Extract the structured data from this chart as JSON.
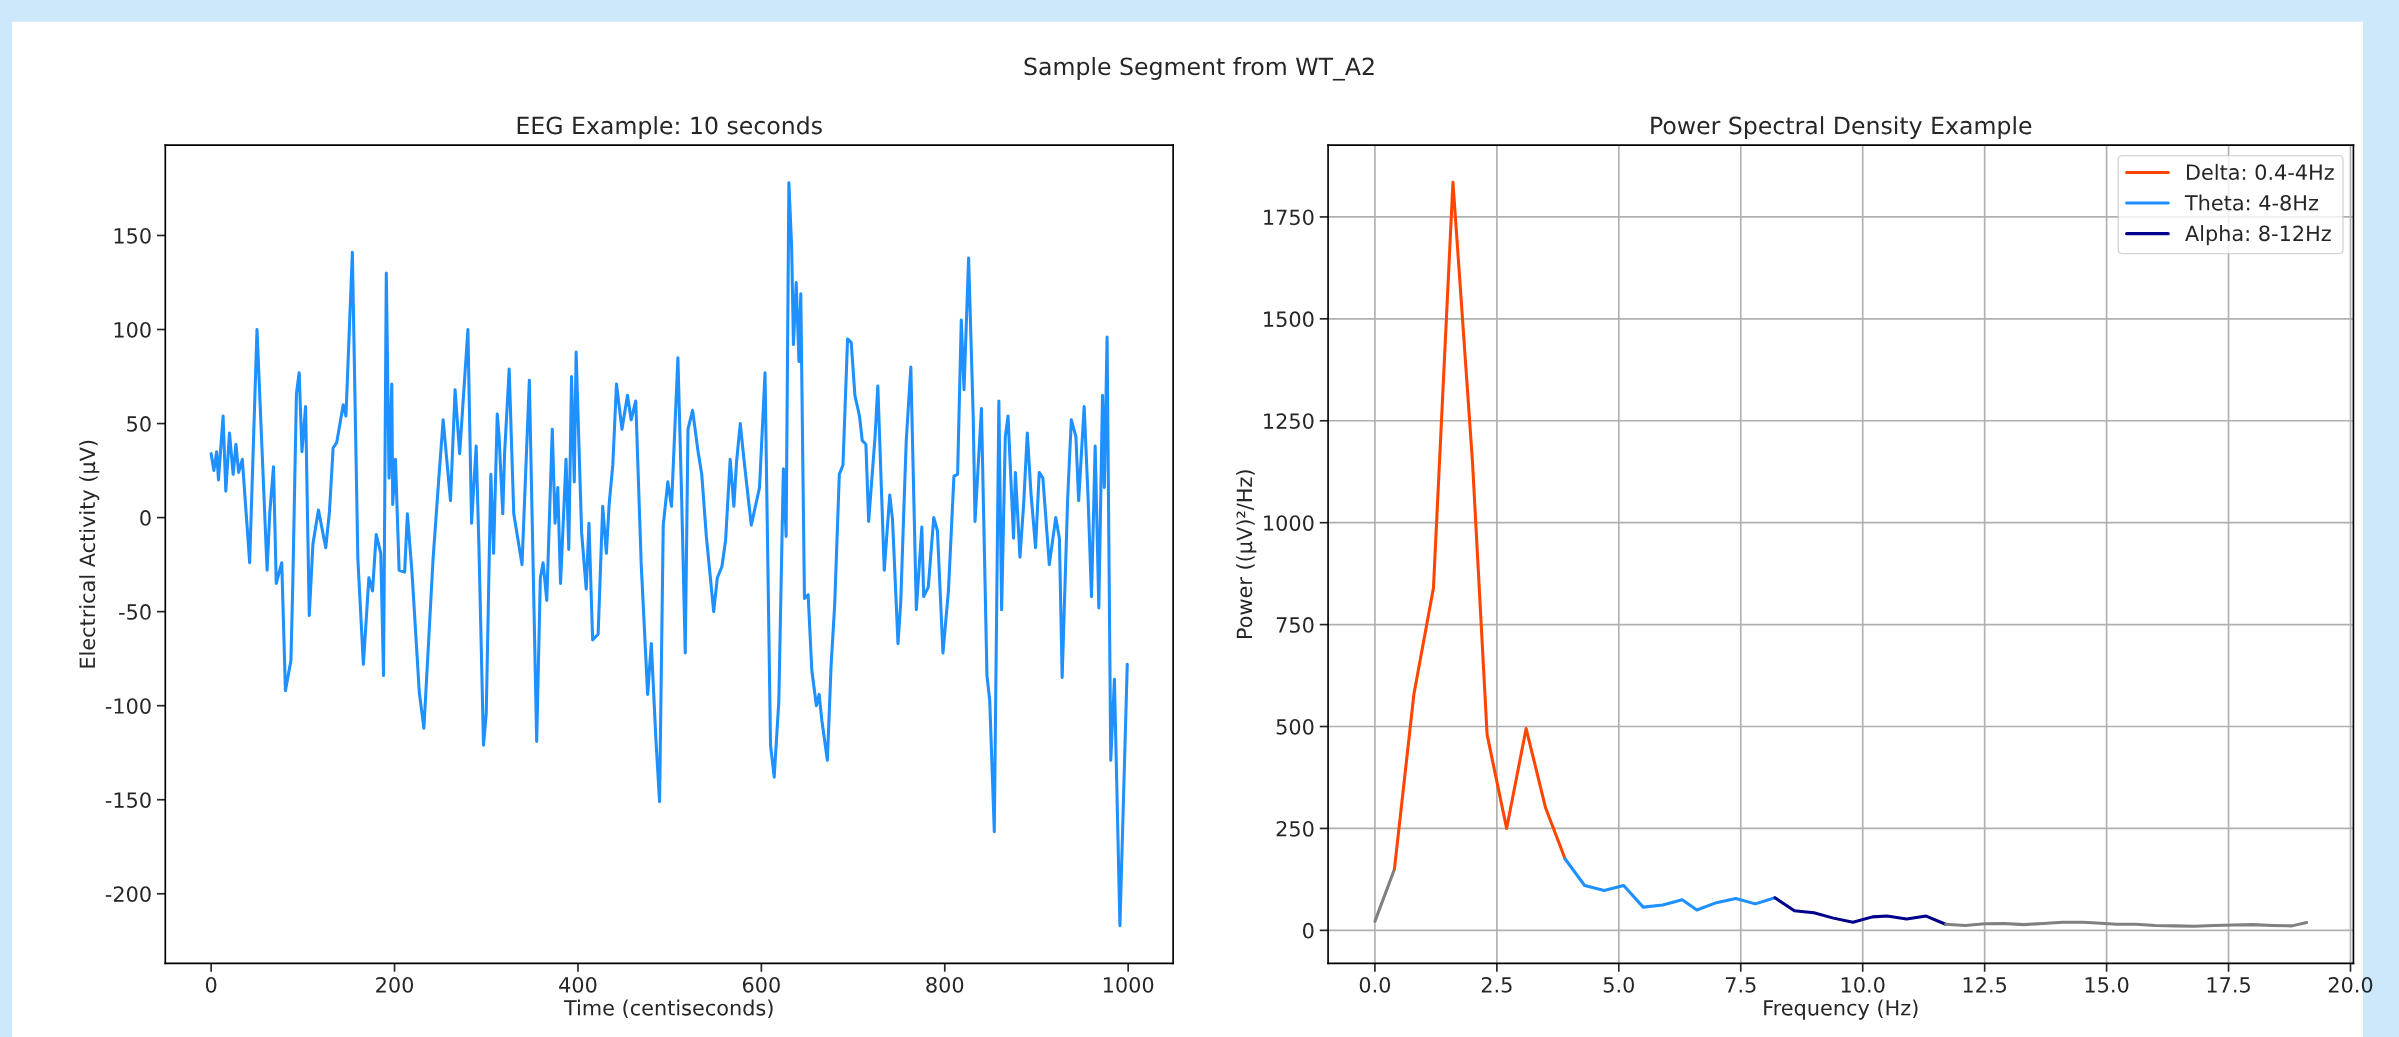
{
  "chart_data": [
    {
      "type": "line",
      "title": "EEG Example: 10 seconds",
      "xlabel": "Time (centiseconds)",
      "ylabel": "Electrical Activity (μV)",
      "annotations": [
        "Sample Segment from WT_A2"
      ],
      "series": [
        {
          "color": "#1e90ff",
          "x": [
            0,
            3,
            6,
            8,
            13,
            16,
            20,
            24,
            27,
            30,
            34,
            42,
            50,
            61,
            64,
            68,
            71,
            77,
            81,
            87,
            89,
            93,
            96,
            99,
            103,
            107,
            111,
            117,
            125,
            129,
            133,
            137,
            144,
            147,
            154,
            160,
            166,
            172,
            176,
            180,
            185,
            188,
            191,
            194,
            197,
            198,
            201,
            205,
            211,
            214,
            219,
            227,
            232,
            242,
            248,
            253,
            261,
            266,
            271,
            280,
            284,
            289,
            292,
            297,
            300,
            305,
            308,
            312,
            314,
            318,
            320,
            325,
            330,
            339,
            347,
            355,
            359,
            362,
            366,
            372,
            375,
            378,
            381,
            387,
            390,
            393,
            396,
            398,
            404,
            409,
            412,
            416,
            422,
            427,
            431,
            434,
            438,
            442,
            448,
            454,
            458,
            463,
            469,
            476,
            480,
            485,
            489,
            493,
            498,
            502,
            509,
            513,
            517,
            520,
            525,
            531,
            535,
            540,
            548,
            552,
            557,
            561,
            566,
            570,
            573,
            577,
            581,
            589,
            598,
            604,
            610,
            614,
            619,
            624,
            627,
            630,
            633,
            635,
            638,
            641,
            643,
            647,
            651,
            655,
            660,
            663,
            666,
            672,
            676,
            680,
            685,
            689,
            694,
            698,
            702,
            707,
            710,
            714,
            717,
            724,
            727,
            734,
            740,
            743,
            749,
            752,
            755,
            758,
            763,
            769,
            775,
            777,
            782,
            788,
            792,
            798,
            804,
            810,
            814,
            818,
            821,
            826,
            831,
            833,
            840,
            846,
            849,
            854,
            859,
            862,
            866,
            869,
            875,
            877,
            882,
            886,
            890,
            894,
            899,
            903,
            907,
            914,
            921,
            925,
            928,
            934,
            938,
            943,
            946,
            952,
            956,
            960,
            964,
            968,
            972,
            974,
            977,
            981,
            985,
            991,
            999
          ],
          "values": [
            34,
            25,
            35,
            20,
            54,
            14,
            45,
            23,
            39,
            24,
            31,
            -24,
            100,
            -28,
            3,
            27,
            -35,
            -24,
            -92,
            -76,
            -36,
            66,
            77,
            35,
            59,
            -52,
            -14,
            4,
            -16,
            3,
            37,
            40,
            60,
            54,
            141,
            -22,
            -78,
            -32,
            -39,
            -9,
            -19,
            -84,
            130,
            21,
            71,
            7,
            31,
            -28,
            -29,
            2,
            -29,
            -93,
            -112,
            -22,
            19,
            52,
            9,
            68,
            34,
            100,
            -3,
            38,
            -15,
            -121,
            -104,
            23,
            -19,
            55,
            43,
            2,
            34,
            79,
            2,
            -25,
            73,
            -119,
            -32,
            -24,
            -44,
            47,
            -3,
            16,
            -35,
            31,
            -17,
            75,
            19,
            88,
            -8,
            -38,
            -3,
            -65,
            -62,
            6,
            -19,
            7,
            28,
            71,
            47,
            65,
            52,
            62,
            -25,
            -94,
            -67,
            -118,
            -151,
            -4,
            19,
            6,
            85,
            12,
            -72,
            47,
            57,
            35,
            23,
            -10,
            -50,
            -32,
            -26,
            -12,
            31,
            6,
            30,
            50,
            31,
            -4,
            16,
            77,
            -121,
            -138,
            -98,
            26,
            -10,
            178,
            144,
            92,
            125,
            83,
            119,
            -43,
            -41,
            -81,
            -100,
            -94,
            -108,
            -129,
            -79,
            -46,
            23,
            28,
            95,
            93,
            65,
            54,
            41,
            39,
            -2,
            43,
            70,
            -28,
            12,
            -1,
            -67,
            -45,
            -1,
            41,
            80,
            -49,
            -5,
            -42,
            -37,
            0,
            -7,
            -72,
            -39,
            22,
            23,
            105,
            68,
            138,
            54,
            -2,
            58,
            -84,
            -97,
            -167,
            62,
            -49,
            43,
            54,
            -11,
            24,
            -21,
            7,
            45,
            13,
            -16,
            24,
            21,
            -25,
            0,
            -11,
            -85,
            10,
            52,
            43,
            9,
            59,
            14,
            -42,
            38,
            -48,
            65,
            16,
            96,
            -129,
            -86,
            -217,
            -78
          ]
        }
      ],
      "xlim": [
        -50,
        1049
      ],
      "ylim": [
        -237,
        198
      ],
      "xticks": [
        0,
        200,
        400,
        600,
        800,
        1000
      ],
      "yticks": [
        -200,
        -150,
        -100,
        -50,
        0,
        50,
        100,
        150
      ],
      "grid": false,
      "legend": false
    },
    {
      "type": "line",
      "title": "Power Spectral Density Example",
      "xlabel": "Frequency (Hz)",
      "ylabel": "Power ((μV)²/Hz)",
      "series": [
        {
          "color": "#808080",
          "x": [
            0,
            0.4
          ],
          "values": [
            22,
            150
          ]
        },
        {
          "name": "Delta: 0.4-4Hz",
          "color": "#ff4500",
          "x": [
            0.4,
            0.8,
            1.2,
            1.6,
            2.0,
            2.3,
            2.7,
            3.1,
            3.5,
            3.9
          ],
          "values": [
            150,
            580,
            840,
            1835,
            1150,
            480,
            250,
            495,
            300,
            175
          ]
        },
        {
          "name": "Theta: 4-8Hz",
          "color": "#1e90ff",
          "x": [
            3.9,
            4.3,
            4.7,
            5.1,
            5.5,
            5.9,
            6.3,
            6.6,
            7.0,
            7.4,
            7.8,
            8.2
          ],
          "values": [
            175,
            110,
            98,
            110,
            57,
            62,
            75,
            50,
            68,
            78,
            65,
            80
          ]
        },
        {
          "name": "Alpha: 8-12Hz",
          "color": "#00008b",
          "x": [
            8.2,
            8.6,
            9.0,
            9.4,
            9.8,
            10.2,
            10.5,
            10.9,
            11.3,
            11.7
          ],
          "values": [
            80,
            48,
            43,
            30,
            20,
            33,
            35,
            28,
            35,
            15
          ]
        },
        {
          "color": "#808080",
          "x": [
            11.7,
            12.1,
            12.5,
            12.9,
            13.3,
            13.7,
            14.1,
            14.5,
            14.8,
            15.2,
            15.6,
            16.0,
            16.4,
            16.8,
            17.2,
            17.6,
            18.0,
            18.4,
            18.8,
            19.1
          ],
          "values": [
            15,
            12,
            16,
            17,
            14,
            17,
            20,
            20,
            18,
            15,
            15,
            12,
            11,
            10,
            12,
            13,
            14,
            12,
            11,
            19
          ]
        }
      ],
      "xlim": [
        -0.96,
        20.06
      ],
      "ylim": [
        -81,
        1926
      ],
      "xticks": [
        {
          "value": 0,
          "label": "0.0"
        },
        {
          "value": 2.5,
          "label": "2.5"
        },
        {
          "value": 5,
          "label": "5.0"
        },
        {
          "value": 7.5,
          "label": "7.5"
        },
        {
          "value": 10,
          "label": "10.0"
        },
        {
          "value": 12.5,
          "label": "12.5"
        },
        {
          "value": 15,
          "label": "15.0"
        },
        {
          "value": 17.5,
          "label": "17.5"
        },
        {
          "value": 20,
          "label": "20.0"
        }
      ],
      "yticks": [
        0,
        250,
        500,
        750,
        1000,
        1250,
        1500,
        1750
      ],
      "grid": true,
      "legend": "top right"
    }
  ]
}
